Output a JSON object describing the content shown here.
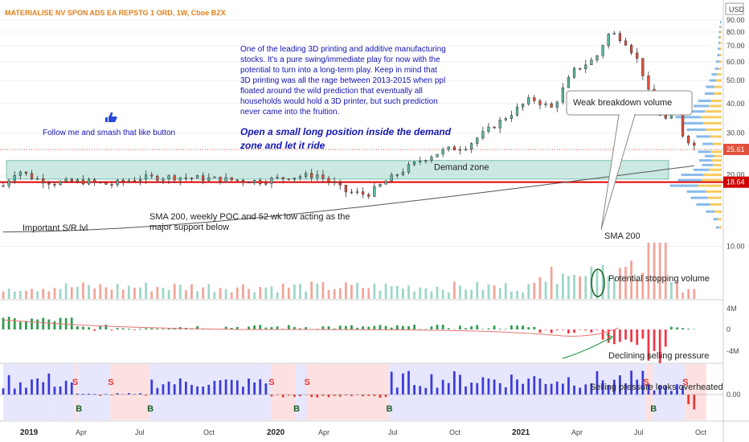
{
  "header": {
    "title": "MATERIALISE NV SPON ADS EA REPSTG 1 ORD, 1W, Cboe BZX",
    "currency": "USD"
  },
  "colors": {
    "up": "#5fb8a3",
    "down": "#e1503a",
    "vol_up": "#9ed6c9",
    "vol_down": "#f2a499",
    "sma": "#555555",
    "support_line": "#e00000",
    "zone": "#b9e2d8",
    "note_text": "#1414b4",
    "osc_up": "#2e9b4f",
    "osc_down": "#f23645",
    "bar_up": "#3c3cd8",
    "bar_down": "#e53935",
    "shade_red": "#fde1e1",
    "shade_blue": "#e6e7ff"
  },
  "chart_data": {
    "type": "candlestick",
    "interval": "1W",
    "x_tick_labels": [
      "2019",
      "Apr",
      "Jul",
      "Oct",
      "2020",
      "Apr",
      "Jul",
      "Oct",
      "2021",
      "Apr",
      "Jul",
      "Oct"
    ],
    "price_axis": {
      "ticks": [
        "90.00",
        "80.00",
        "70.00",
        "60.00",
        "50.00",
        "40.00",
        "30.00",
        "20.00",
        "10.00"
      ],
      "ylim": [
        6,
        92
      ],
      "scale": "log"
    },
    "last_price": "25.61",
    "support_price": "18.64",
    "volume_profile_bands": [
      [
        12,
        0.1
      ],
      [
        13,
        0.15
      ],
      [
        14,
        0.28
      ],
      [
        15,
        0.45
      ],
      [
        16,
        0.55
      ],
      [
        17,
        0.62
      ],
      [
        18,
        0.92
      ],
      [
        19,
        0.78
      ],
      [
        20,
        0.72
      ],
      [
        21,
        0.5
      ],
      [
        22,
        0.35
      ],
      [
        23,
        0.4
      ],
      [
        24,
        0.3
      ],
      [
        25,
        0.42
      ],
      [
        27,
        0.34
      ],
      [
        29,
        0.45
      ],
      [
        31,
        0.62
      ],
      [
        33,
        0.72
      ],
      [
        35,
        0.82
      ],
      [
        37,
        0.66
      ],
      [
        39,
        0.5
      ],
      [
        41,
        0.42
      ],
      [
        44,
        0.3
      ],
      [
        47,
        0.28
      ],
      [
        50,
        0.22
      ],
      [
        53,
        0.18
      ],
      [
        56,
        0.12
      ],
      [
        60,
        0.1
      ],
      [
        64,
        0.08
      ],
      [
        68,
        0.07
      ],
      [
        72,
        0.06
      ],
      [
        76,
        0.06
      ],
      [
        80,
        0.05
      ],
      [
        84,
        0.04
      ],
      [
        88,
        0.03
      ]
    ],
    "osc_axis_ticks": [
      "4M",
      "0",
      "-4M"
    ],
    "bar_axis_ticks": [
      "0.00"
    ],
    "sma_label": "SMA 200",
    "zone_label": "Demand zone",
    "signals": [
      {
        "label": "S",
        "week": 20
      },
      {
        "label": "B",
        "week": 21
      },
      {
        "label": "S",
        "week": 30
      },
      {
        "label": "B",
        "week": 41
      },
      {
        "label": "S",
        "week": 75
      },
      {
        "label": "B",
        "week": 82
      },
      {
        "label": "S",
        "week": 85
      },
      {
        "label": "B",
        "week": 108
      },
      {
        "label": "S",
        "week": 180
      },
      {
        "label": "B",
        "week": 182
      },
      {
        "label": "S",
        "week": 191
      }
    ]
  },
  "annotations": {
    "like_text": "Follow me and smash that like button",
    "note_paragraph": [
      "One of the leading 3D printing and additive manufacturing",
      "stocks.  It's a pure swing/immediate play for now with the",
      "potential to turn into a long-term play.  Keep in mind that",
      "3D printing was all the rage between 2013-2015 when ppl",
      "floated around the wild prediction that eventually all",
      "households would hold a 3D printer, but such prediction",
      "never came into the fruition."
    ],
    "strategy_lines": [
      "Open a small long position inside the demand",
      "zone and let it ride"
    ],
    "sr_label": "Important S/R lvl",
    "sma_note": [
      "SMA 200, weekly POC and 52 wk low acting as the",
      "major support below"
    ],
    "weak_breakdown": "Weak breakdown volume",
    "stopping_volume": "Potential stopping volume",
    "declining_selling": "Declining selling pressure",
    "overheated": "Selling pressure looks overheated"
  }
}
